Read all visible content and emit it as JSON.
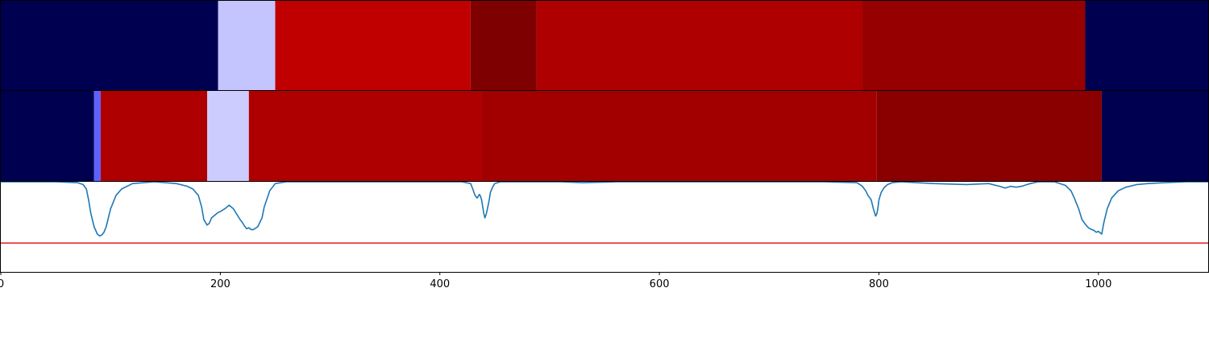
{
  "chart_data": {
    "type": "heatmap",
    "title": "",
    "xlabel": "",
    "ylabel": "",
    "xlim": [
      0,
      1100
    ],
    "xticks": [
      0,
      200,
      400,
      600,
      800,
      1000
    ],
    "xtick_labels": [
      "0",
      "200",
      "400",
      "600",
      "800",
      "1000"
    ],
    "grid": false,
    "legend": "none",
    "segment_rows": [
      {
        "segments": [
          {
            "start": 0,
            "end": 198,
            "color": "#000050"
          },
          {
            "start": 198,
            "end": 250,
            "color": "#c4c4ff"
          },
          {
            "start": 250,
            "end": 428,
            "color": "#c00000"
          },
          {
            "start": 428,
            "end": 488,
            "color": "#7e0000"
          },
          {
            "start": 488,
            "end": 785,
            "color": "#ae0000"
          },
          {
            "start": 785,
            "end": 988,
            "color": "#960000"
          },
          {
            "start": 988,
            "end": 1100,
            "color": "#000050"
          }
        ]
      },
      {
        "segments": [
          {
            "start": 0,
            "end": 85,
            "color": "#000050"
          },
          {
            "start": 85,
            "end": 91,
            "color": "#6060ff"
          },
          {
            "start": 91,
            "end": 188,
            "color": "#ae0000"
          },
          {
            "start": 188,
            "end": 226,
            "color": "#ccccff"
          },
          {
            "start": 226,
            "end": 438,
            "color": "#ae0000"
          },
          {
            "start": 438,
            "end": 798,
            "color": "#a20000"
          },
          {
            "start": 798,
            "end": 1003,
            "color": "#8a0000"
          },
          {
            "start": 1003,
            "end": 1100,
            "color": "#000050"
          }
        ]
      }
    ],
    "line_panel": {
      "ylim": [
        -1.0,
        0.0
      ],
      "line_color": "#1f77b4",
      "threshold": -0.68,
      "threshold_color": "#e31a1c",
      "series": {
        "x": [
          0,
          50,
          70,
          75,
          78,
          80,
          82,
          85,
          88,
          90,
          92,
          94,
          96,
          100,
          105,
          110,
          120,
          140,
          160,
          170,
          175,
          180,
          183,
          185,
          188,
          190,
          192,
          195,
          198,
          200,
          204,
          208,
          210,
          212,
          214,
          216,
          218,
          220,
          222,
          224,
          226,
          228,
          230,
          234,
          238,
          240,
          245,
          250,
          260,
          280,
          300,
          330,
          360,
          400,
          420,
          428,
          430,
          432,
          434,
          435,
          436,
          437,
          438,
          440,
          441,
          442,
          443,
          445,
          446,
          448,
          450,
          455,
          480,
          510,
          530,
          560,
          600,
          650,
          700,
          750,
          780,
          785,
          788,
          790,
          793,
          795,
          797,
          798,
          799,
          800,
          802,
          803,
          805,
          808,
          812,
          820,
          850,
          880,
          900,
          910,
          915,
          920,
          925,
          930,
          935,
          938,
          945,
          960,
          970,
          975,
          978,
          982,
          985,
          988,
          990,
          992,
          994,
          996,
          998,
          1000,
          1002,
          1003,
          1005,
          1008,
          1012,
          1018,
          1025,
          1035,
          1045,
          1060,
          1080,
          1100
        ],
        "y": [
          0.0,
          0.0,
          -0.01,
          -0.03,
          -0.08,
          -0.2,
          -0.35,
          -0.5,
          -0.58,
          -0.6,
          -0.59,
          -0.56,
          -0.5,
          -0.3,
          -0.15,
          -0.08,
          -0.02,
          0.0,
          -0.02,
          -0.05,
          -0.08,
          -0.15,
          -0.28,
          -0.42,
          -0.48,
          -0.46,
          -0.4,
          -0.37,
          -0.34,
          -0.33,
          -0.3,
          -0.26,
          -0.28,
          -0.3,
          -0.34,
          -0.38,
          -0.42,
          -0.45,
          -0.49,
          -0.52,
          -0.51,
          -0.53,
          -0.53,
          -0.5,
          -0.4,
          -0.28,
          -0.1,
          -0.02,
          0.0,
          0.0,
          0.0,
          0.0,
          0.0,
          0.0,
          0.0,
          -0.02,
          -0.08,
          -0.15,
          -0.18,
          -0.16,
          -0.14,
          -0.16,
          -0.2,
          -0.35,
          -0.4,
          -0.37,
          -0.32,
          -0.2,
          -0.12,
          -0.06,
          -0.02,
          0.0,
          0.0,
          0.0,
          -0.01,
          0.0,
          0.0,
          0.0,
          0.0,
          0.0,
          -0.01,
          -0.05,
          -0.1,
          -0.15,
          -0.2,
          -0.3,
          -0.38,
          -0.36,
          -0.3,
          -0.2,
          -0.12,
          -0.1,
          -0.06,
          -0.03,
          -0.01,
          0.0,
          -0.02,
          -0.03,
          -0.02,
          -0.05,
          -0.07,
          -0.05,
          -0.06,
          -0.05,
          -0.03,
          -0.02,
          0.0,
          0.0,
          -0.04,
          -0.1,
          -0.18,
          -0.3,
          -0.42,
          -0.47,
          -0.5,
          -0.52,
          -0.53,
          -0.54,
          -0.56,
          -0.55,
          -0.57,
          -0.58,
          -0.45,
          -0.3,
          -0.18,
          -0.1,
          -0.06,
          -0.03,
          -0.02,
          -0.01,
          0.0,
          0.0
        ]
      }
    }
  }
}
